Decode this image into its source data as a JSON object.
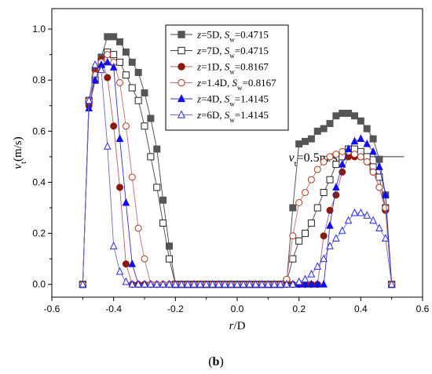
{
  "chart_data": {
    "type": "scatter",
    "xlabel_italic": "r",
    "xlabel_rest": "/D",
    "ylabel_italic": "v",
    "ylabel_sub": "t",
    "ylabel_rest": "(m/s)",
    "panel_label_open": "(",
    "panel_label_bold": "b",
    "panel_label_close": ")",
    "xlim": [
      -0.6,
      0.6
    ],
    "ylim": [
      -0.05,
      1.08
    ],
    "x_ticks": [
      -0.6,
      -0.4,
      -0.2,
      0.0,
      0.2,
      0.4,
      0.6
    ],
    "x_tick_labels": [
      "-0.6",
      "-0.4",
      "-0.2",
      "0.0",
      "0.2",
      "0.4",
      "0.6"
    ],
    "y_ticks": [
      0.0,
      0.2,
      0.4,
      0.6,
      0.8,
      1.0
    ],
    "y_tick_labels": [
      "0.0",
      "0.2",
      "0.4",
      "0.6",
      "0.8",
      "1.0"
    ],
    "grid": false,
    "legend_position": "top-right",
    "annotation": {
      "var": "v",
      "sub": "t",
      "text": "=0.5m/s",
      "reference_y": 0.5,
      "x_range": [
        0.33,
        0.54
      ]
    },
    "series": [
      {
        "name": "z=5D, Sw=0.4715",
        "legend": {
          "z": "z",
          "zval": "=5D, ",
          "s": "S",
          "ssub": "w",
          "sval": "=0.4715"
        },
        "marker": "square",
        "fill": "#555555",
        "stroke": "#555555",
        "line": "#444444",
        "x": [
          -0.5,
          -0.48,
          -0.46,
          -0.44,
          -0.42,
          -0.4,
          -0.38,
          -0.36,
          -0.34,
          -0.32,
          -0.3,
          -0.28,
          -0.26,
          -0.24,
          -0.22,
          -0.2,
          -0.18,
          -0.16,
          -0.14,
          -0.12,
          -0.1,
          -0.08,
          -0.06,
          -0.04,
          -0.02,
          0.0,
          0.02,
          0.04,
          0.06,
          0.08,
          0.1,
          0.12,
          0.14,
          0.16,
          0.18,
          0.2,
          0.22,
          0.24,
          0.26,
          0.28,
          0.3,
          0.32,
          0.34,
          0.36,
          0.38,
          0.4,
          0.42,
          0.44,
          0.46,
          0.48,
          0.5
        ],
        "y": [
          0,
          0.72,
          0.8,
          0.89,
          0.97,
          0.97,
          0.95,
          0.91,
          0.87,
          0.83,
          0.75,
          0.65,
          0.53,
          0.33,
          0.15,
          0,
          0,
          0,
          0,
          0,
          0,
          0,
          0,
          0,
          0,
          0,
          0,
          0,
          0,
          0,
          0,
          0,
          0,
          0.01,
          0.3,
          0.55,
          0.56,
          0.57,
          0.6,
          0.61,
          0.63,
          0.66,
          0.67,
          0.67,
          0.66,
          0.64,
          0.61,
          0.57,
          0.49,
          0.35,
          0
        ]
      },
      {
        "name": "z=7D, Sw=0.4715",
        "legend": {
          "z": "z",
          "zval": "=7D, ",
          "s": "S",
          "ssub": "w",
          "sval": "=0.4715"
        },
        "marker": "square",
        "fill": "#ffffff",
        "stroke": "#222222",
        "line": "#444444",
        "x": [
          -0.5,
          -0.48,
          -0.46,
          -0.44,
          -0.42,
          -0.4,
          -0.38,
          -0.36,
          -0.34,
          -0.32,
          -0.3,
          -0.28,
          -0.26,
          -0.24,
          -0.22,
          -0.2,
          -0.18,
          -0.16,
          -0.14,
          -0.12,
          -0.1,
          -0.08,
          -0.06,
          -0.04,
          -0.02,
          0.0,
          0.02,
          0.04,
          0.06,
          0.08,
          0.1,
          0.12,
          0.14,
          0.16,
          0.18,
          0.2,
          0.22,
          0.24,
          0.26,
          0.28,
          0.3,
          0.32,
          0.34,
          0.36,
          0.38,
          0.4,
          0.42,
          0.44,
          0.46,
          0.48,
          0.5
        ],
        "y": [
          0,
          0.72,
          0.8,
          0.86,
          0.91,
          0.9,
          0.87,
          0.82,
          0.77,
          0.72,
          0.62,
          0.5,
          0.38,
          0.24,
          0.1,
          0,
          0,
          0,
          0,
          0,
          0,
          0,
          0,
          0,
          0,
          0,
          0,
          0,
          0,
          0,
          0,
          0,
          0,
          0.01,
          0.1,
          0.17,
          0.2,
          0.24,
          0.3,
          0.36,
          0.41,
          0.47,
          0.5,
          0.53,
          0.53,
          0.52,
          0.5,
          0.46,
          0.42,
          0.3,
          0
        ]
      },
      {
        "name": "z=1D, Sw=0.8167",
        "legend": {
          "z": "z",
          "zval": "=1D, ",
          "s": "S",
          "ssub": "w",
          "sval": "=0.8167"
        },
        "marker": "circle",
        "fill": "#8b1a0e",
        "stroke": "#8b1a0e",
        "line": "#b06060",
        "x": [
          -0.5,
          -0.48,
          -0.46,
          -0.44,
          -0.42,
          -0.4,
          -0.38,
          -0.36,
          -0.34,
          -0.32,
          -0.3,
          -0.28,
          -0.26,
          -0.24,
          -0.22,
          -0.2,
          -0.18,
          -0.16,
          -0.14,
          -0.12,
          -0.1,
          -0.08,
          -0.06,
          -0.04,
          -0.02,
          0.0,
          0.02,
          0.04,
          0.06,
          0.08,
          0.1,
          0.12,
          0.14,
          0.16,
          0.18,
          0.2,
          0.22,
          0.24,
          0.26,
          0.28,
          0.3,
          0.32,
          0.34,
          0.36,
          0.38,
          0.4,
          0.42,
          0.44,
          0.46,
          0.48,
          0.5
        ],
        "y": [
          0,
          0.7,
          0.84,
          0.88,
          0.81,
          0.62,
          0.38,
          0.08,
          0,
          0,
          0,
          0,
          0,
          0,
          0,
          0,
          0,
          0,
          0,
          0,
          0,
          0,
          0,
          0,
          0,
          0,
          0,
          0,
          0,
          0,
          0,
          0,
          0,
          0,
          0,
          0,
          0,
          0,
          0,
          0.19,
          0.29,
          0.35,
          0.44,
          0.5,
          0.5,
          0.5,
          0.48,
          0.44,
          0.38,
          0.29,
          0
        ]
      },
      {
        "name": "z=1.4D, Sw=0.8167",
        "legend": {
          "z": "z",
          "zval": "=1.4D, ",
          "s": "S",
          "ssub": "w",
          "sval": "=0.8167"
        },
        "marker": "circle",
        "fill": "#ffffff",
        "stroke": "#b03a20",
        "line": "#c07070",
        "x": [
          -0.5,
          -0.48,
          -0.46,
          -0.44,
          -0.42,
          -0.4,
          -0.38,
          -0.36,
          -0.34,
          -0.32,
          -0.3,
          -0.28,
          -0.26,
          -0.24,
          -0.22,
          -0.2,
          -0.18,
          -0.16,
          -0.14,
          -0.12,
          -0.1,
          -0.08,
          -0.06,
          -0.04,
          -0.02,
          0.0,
          0.02,
          0.04,
          0.06,
          0.08,
          0.1,
          0.12,
          0.14,
          0.16,
          0.18,
          0.2,
          0.22,
          0.24,
          0.26,
          0.28,
          0.3,
          0.32,
          0.34,
          0.36,
          0.38,
          0.4,
          0.42,
          0.44,
          0.46,
          0.48,
          0.5
        ],
        "y": [
          0,
          0.72,
          0.82,
          0.87,
          0.9,
          0.87,
          0.79,
          0.62,
          0.42,
          0.22,
          0.1,
          0,
          0,
          0,
          0,
          0,
          0,
          0,
          0,
          0,
          0,
          0,
          0,
          0,
          0,
          0,
          0,
          0,
          0,
          0,
          0,
          0,
          0,
          0.02,
          0.19,
          0.32,
          0.36,
          0.41,
          0.45,
          0.48,
          0.5,
          0.51,
          0.52,
          0.52,
          0.51,
          0.5,
          0.48,
          0.44,
          0.38,
          0.3,
          0
        ]
      },
      {
        "name": "z=4D, Sw=1.4145",
        "legend": {
          "z": "z",
          "zval": "=4D, ",
          "s": "S",
          "ssub": "w",
          "sval": "=1.4145"
        },
        "marker": "triangle",
        "fill": "#1010ee",
        "stroke": "#1010ee",
        "line": "#3030cc",
        "x": [
          -0.5,
          -0.48,
          -0.46,
          -0.44,
          -0.42,
          -0.4,
          -0.38,
          -0.36,
          -0.34,
          -0.32,
          -0.3,
          -0.28,
          -0.26,
          -0.24,
          -0.22,
          -0.2,
          -0.18,
          -0.16,
          -0.14,
          -0.12,
          -0.1,
          -0.08,
          -0.06,
          -0.04,
          -0.02,
          0.0,
          0.02,
          0.04,
          0.06,
          0.08,
          0.1,
          0.12,
          0.14,
          0.16,
          0.18,
          0.2,
          0.22,
          0.24,
          0.26,
          0.28,
          0.3,
          0.32,
          0.34,
          0.36,
          0.38,
          0.4,
          0.42,
          0.44,
          0.46,
          0.48,
          0.5
        ],
        "y": [
          0,
          0.69,
          0.8,
          0.86,
          0.87,
          0.85,
          0.57,
          0.32,
          0.08,
          0,
          0,
          0,
          0,
          0,
          0,
          0,
          0,
          0,
          0,
          0,
          0,
          0,
          0,
          0,
          0,
          0,
          0,
          0,
          0,
          0,
          0,
          0,
          0,
          0,
          0,
          0,
          0,
          0,
          0,
          0,
          0.23,
          0.38,
          0.47,
          0.53,
          0.56,
          0.57,
          0.55,
          0.52,
          0.46,
          0.35,
          0
        ]
      },
      {
        "name": "z=6D, Sw=1.4145",
        "legend": {
          "z": "z",
          "zval": "=6D, ",
          "s": "S",
          "ssub": "w",
          "sval": "=1.4145"
        },
        "marker": "triangle",
        "fill": "#ffffff",
        "stroke": "#2a2aee",
        "line": "#6a6ad0",
        "x": [
          -0.5,
          -0.48,
          -0.46,
          -0.44,
          -0.42,
          -0.4,
          -0.38,
          -0.36,
          -0.34,
          -0.32,
          -0.3,
          -0.28,
          -0.26,
          -0.24,
          -0.22,
          -0.2,
          -0.18,
          -0.16,
          -0.14,
          -0.12,
          -0.1,
          -0.08,
          -0.06,
          -0.04,
          -0.02,
          0.0,
          0.02,
          0.04,
          0.06,
          0.08,
          0.1,
          0.12,
          0.14,
          0.16,
          0.18,
          0.2,
          0.22,
          0.24,
          0.26,
          0.28,
          0.3,
          0.32,
          0.34,
          0.36,
          0.38,
          0.4,
          0.42,
          0.44,
          0.46,
          0.48,
          0.5
        ],
        "y": [
          0,
          0.72,
          0.86,
          0.84,
          0.54,
          0.15,
          0.05,
          0.01,
          0,
          0,
          0,
          0,
          0,
          0,
          0,
          0,
          0,
          0,
          0,
          0,
          0,
          0,
          0,
          0,
          0,
          0,
          0,
          0,
          0,
          0,
          0,
          0,
          0,
          0,
          0,
          0.01,
          0.02,
          0.04,
          0.07,
          0.1,
          0.15,
          0.18,
          0.21,
          0.25,
          0.28,
          0.28,
          0.27,
          0.25,
          0.22,
          0.18,
          0
        ]
      }
    ]
  }
}
